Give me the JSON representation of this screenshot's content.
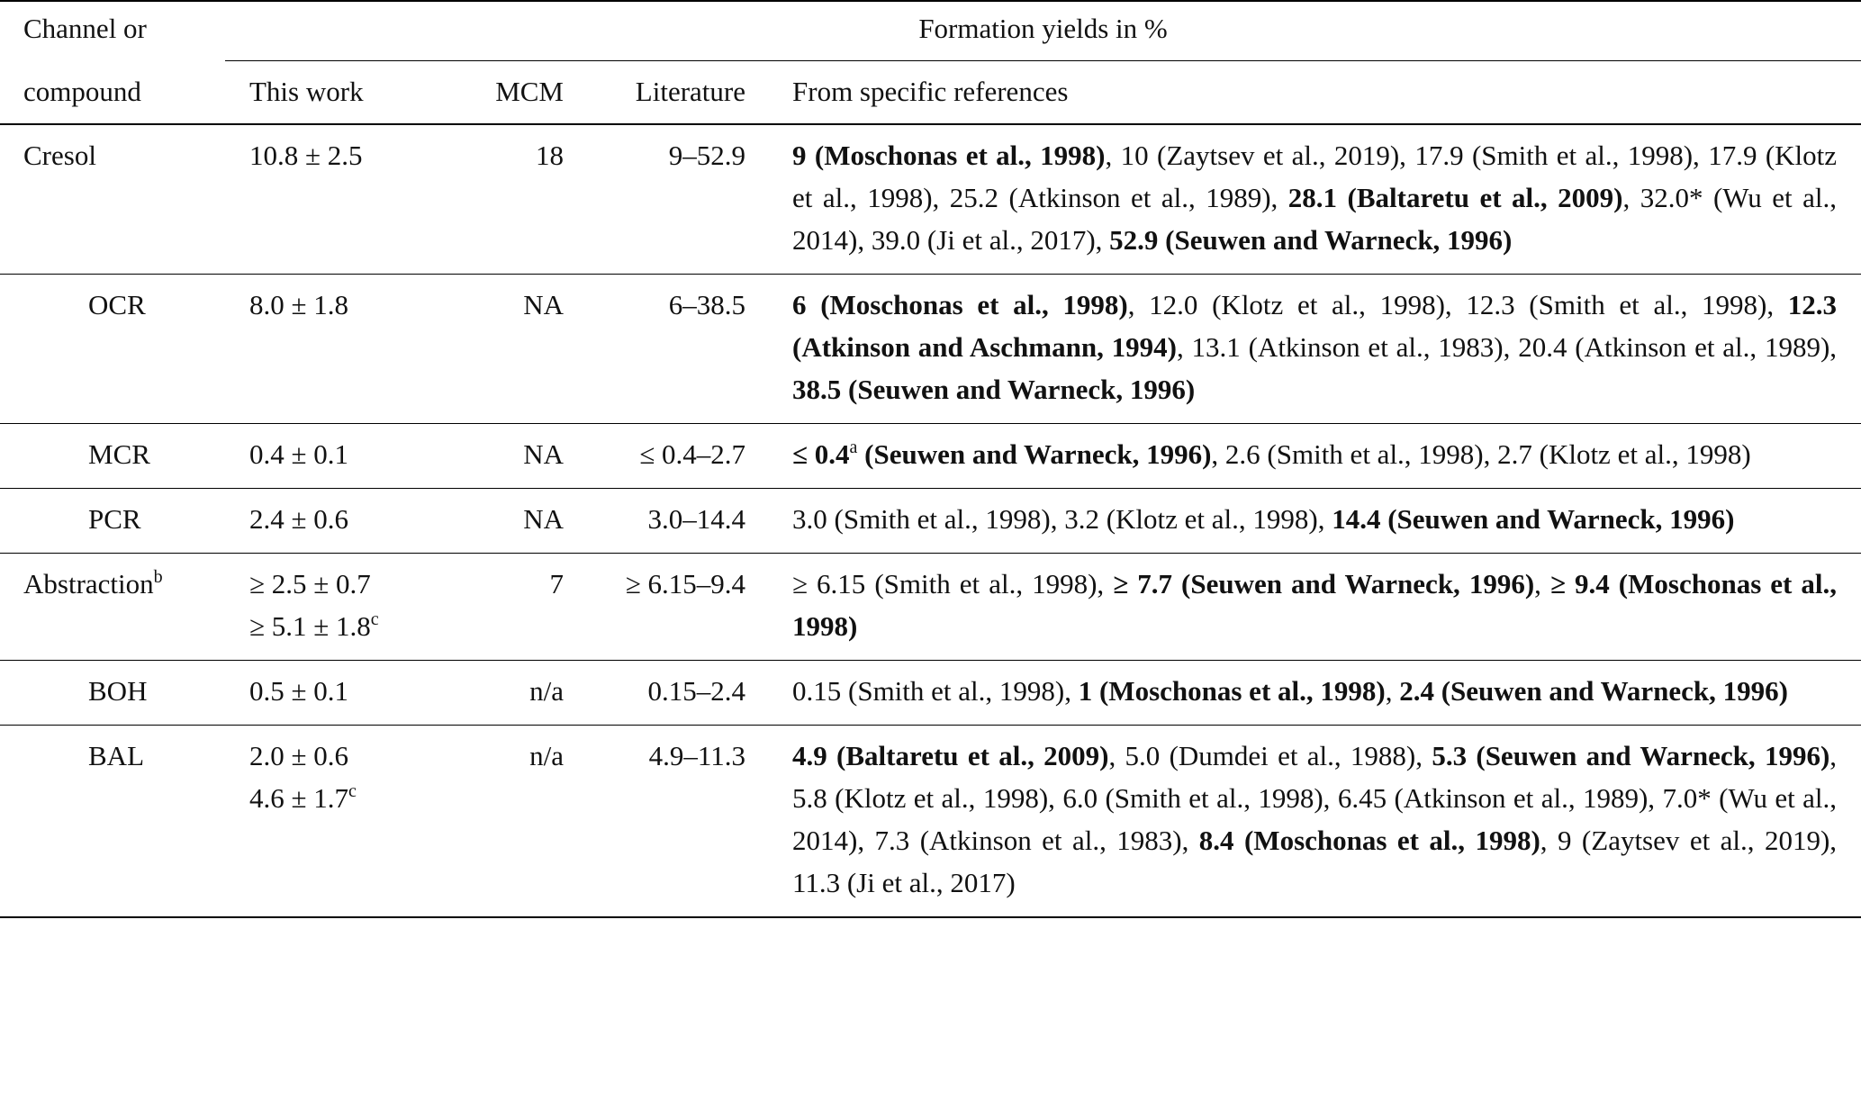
{
  "header": {
    "channel": "Channel or",
    "compound": "compound",
    "group": "Formation yields in %",
    "columns": [
      "This work",
      "MCM",
      "Literature",
      "From specific references"
    ]
  },
  "table": {
    "rows": [
      {
        "compound": [
          {
            "t": "Cresol"
          }
        ],
        "level": 0,
        "this_work": [
          [
            {
              "t": "10.8 ± 2.5"
            }
          ]
        ],
        "mcm": "18",
        "literature": "9–52.9",
        "refs": [
          {
            "t": "9 (Moschonas et al., 1998)",
            "s": "b"
          },
          {
            "t": ", 10 (Zaytsev et al., 2019), 17.9 (Smith et al., 1998), 17.9 (Klotz et al., 1998), 25.2 (Atkinson et al., 1989), "
          },
          {
            "t": "28.1 (Baltaretu et al., 2009)",
            "s": "b"
          },
          {
            "t": ", 32.0* (Wu et al., 2014), 39.0 (Ji et al., 2017), "
          },
          {
            "t": "52.9 (Seuwen and Warneck, 1996)",
            "s": "b"
          }
        ]
      },
      {
        "compound": [
          {
            "t": "OCR"
          }
        ],
        "level": 1,
        "this_work": [
          [
            {
              "t": "8.0 ± 1.8"
            }
          ]
        ],
        "mcm": "NA",
        "literature": "6–38.5",
        "refs": [
          {
            "t": "6 (Moschonas et al., 1998)",
            "s": "b"
          },
          {
            "t": ", 12.0 (Klotz et al., 1998), 12.3 (Smith et al., 1998), "
          },
          {
            "t": "12.3 (Atkinson and Aschmann, 1994)",
            "s": "b"
          },
          {
            "t": ", 13.1 (Atkinson et al., 1983), 20.4 (Atkinson et al., 1989), "
          },
          {
            "t": "38.5 (Seuwen and Warneck, 1996)",
            "s": "b"
          }
        ]
      },
      {
        "compound": [
          {
            "t": "MCR"
          }
        ],
        "level": 1,
        "this_work": [
          [
            {
              "t": "0.4 ± 0.1"
            }
          ]
        ],
        "mcm": "NA",
        "literature": "≤ 0.4–2.7",
        "refs": [
          {
            "t": "≤ 0.4",
            "s": "b"
          },
          {
            "t": "a",
            "s": "sup"
          },
          {
            "t": " (Seuwen and Warneck, 1996)",
            "s": "b"
          },
          {
            "t": ", 2.6 (Smith et al., 1998), 2.7 (Klotz et al., 1998)"
          }
        ]
      },
      {
        "compound": [
          {
            "t": "PCR"
          }
        ],
        "level": 1,
        "this_work": [
          [
            {
              "t": "2.4 ± 0.6"
            }
          ]
        ],
        "mcm": "NA",
        "literature": "3.0–14.4",
        "refs": [
          {
            "t": "3.0 (Smith et al., 1998), 3.2 (Klotz et al., 1998), "
          },
          {
            "t": "14.4 (Seuwen and Warneck, 1996)",
            "s": "b"
          }
        ]
      },
      {
        "compound": [
          {
            "t": "Abstraction"
          },
          {
            "t": "b",
            "s": "sup"
          }
        ],
        "level": 0,
        "this_work": [
          [
            {
              "t": "≥ 2.5 ± 0.7"
            }
          ],
          [
            {
              "t": "≥ 5.1 ± 1.8"
            },
            {
              "t": "c",
              "s": "sup"
            }
          ]
        ],
        "mcm": "7",
        "literature": "≥ 6.15–9.4",
        "refs": [
          {
            "t": "≥ 6.15 (Smith et al., 1998), "
          },
          {
            "t": "≥ 7.7 (Seuwen and Warneck, 1996)",
            "s": "b"
          },
          {
            "t": ", "
          },
          {
            "t": "≥ 9.4 (Moschonas et al., 1998)",
            "s": "b"
          }
        ]
      },
      {
        "compound": [
          {
            "t": "BOH"
          }
        ],
        "level": 1,
        "this_work": [
          [
            {
              "t": "0.5 ± 0.1"
            }
          ]
        ],
        "mcm": "n/a",
        "literature": "0.15–2.4",
        "refs": [
          {
            "t": "0.15 (Smith et al., 1998), "
          },
          {
            "t": "1 (Moschonas et al., 1998)",
            "s": "b"
          },
          {
            "t": ", "
          },
          {
            "t": "2.4 (Seuwen and Warneck, 1996)",
            "s": "b"
          }
        ]
      },
      {
        "compound": [
          {
            "t": "BAL"
          }
        ],
        "level": 1,
        "this_work": [
          [
            {
              "t": "2.0 ± 0.6"
            }
          ],
          [
            {
              "t": "4.6 ± 1.7"
            },
            {
              "t": "c",
              "s": "sup"
            }
          ]
        ],
        "mcm": "n/a",
        "literature": "4.9–11.3",
        "refs": [
          {
            "t": "4.9 (Baltaretu et al., 2009)",
            "s": "b"
          },
          {
            "t": ", 5.0 (Dumdei et al., 1988), "
          },
          {
            "t": "5.3 (Seuwen and Warneck, 1996)",
            "s": "b"
          },
          {
            "t": ", 5.8 (Klotz et al., 1998), 6.0 (Smith et al., 1998), 6.45 (Atkinson et al., 1989), 7.0* (Wu et al., 2014), 7.3 (Atkinson et al., 1983), "
          },
          {
            "t": "8.4 (Moschonas et al., 1998)",
            "s": "b"
          },
          {
            "t": ", 9 (Zaytsev et al., 2019), 11.3 (Ji et al., 2017)"
          }
        ]
      }
    ]
  }
}
